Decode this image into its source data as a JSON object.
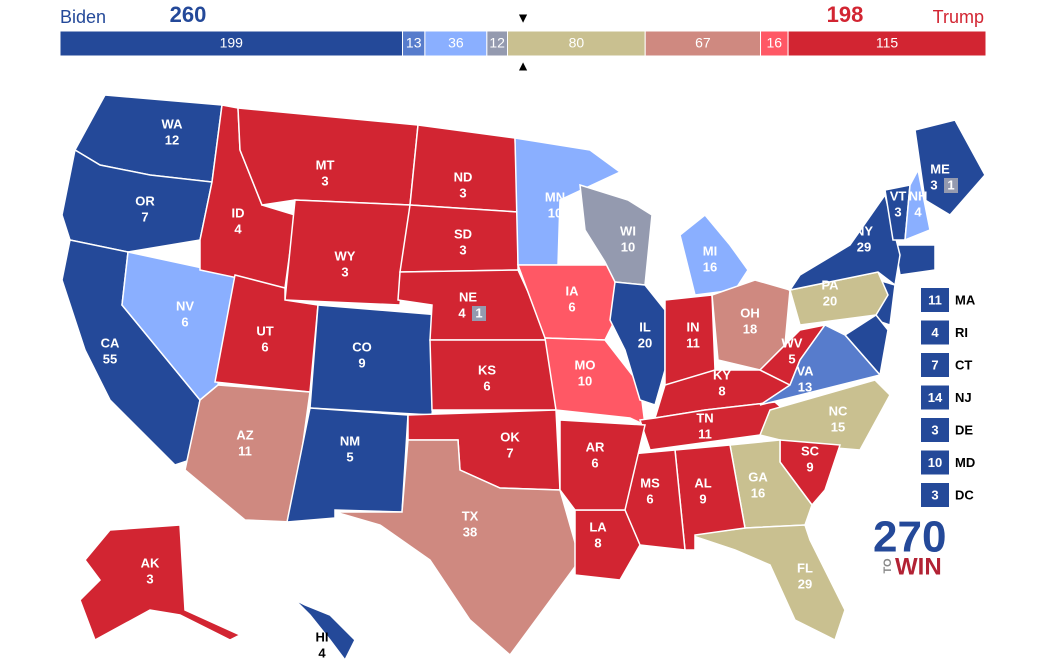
{
  "header": {
    "left_name": "Biden",
    "left_total": 260,
    "right_name": "Trump",
    "right_total": 198,
    "segments": [
      {
        "value": 199,
        "color": "#244999"
      },
      {
        "value": 13,
        "color": "#577ccc"
      },
      {
        "value": 36,
        "color": "#8aafff"
      },
      {
        "value": 12,
        "color": "#949aaf"
      },
      {
        "value": 80,
        "color": "#c9c090"
      },
      {
        "value": 67,
        "color": "#cf8980"
      },
      {
        "value": 16,
        "color": "#ff5865"
      },
      {
        "value": 115,
        "color": "#d22532"
      }
    ]
  },
  "states": [
    {
      "abbr": "WA",
      "ev": 12,
      "color": "#244999"
    },
    {
      "abbr": "OR",
      "ev": 7,
      "color": "#244999"
    },
    {
      "abbr": "CA",
      "ev": 55,
      "color": "#244999"
    },
    {
      "abbr": "NV",
      "ev": 6,
      "color": "#8aafff"
    },
    {
      "abbr": "ID",
      "ev": 4,
      "color": "#d22532"
    },
    {
      "abbr": "MT",
      "ev": 3,
      "color": "#d22532"
    },
    {
      "abbr": "WY",
      "ev": 3,
      "color": "#d22532"
    },
    {
      "abbr": "UT",
      "ev": 6,
      "color": "#d22532"
    },
    {
      "abbr": "CO",
      "ev": 9,
      "color": "#244999"
    },
    {
      "abbr": "AZ",
      "ev": 11,
      "color": "#cf8980"
    },
    {
      "abbr": "NM",
      "ev": 5,
      "color": "#244999"
    },
    {
      "abbr": "ND",
      "ev": 3,
      "color": "#d22532"
    },
    {
      "abbr": "SD",
      "ev": 3,
      "color": "#d22532"
    },
    {
      "abbr": "NE",
      "ev": 4,
      "color": "#d22532",
      "district": 1,
      "district_color": "#949aaf"
    },
    {
      "abbr": "KS",
      "ev": 6,
      "color": "#d22532"
    },
    {
      "abbr": "OK",
      "ev": 7,
      "color": "#d22532"
    },
    {
      "abbr": "TX",
      "ev": 38,
      "color": "#cf8980"
    },
    {
      "abbr": "MN",
      "ev": 10,
      "color": "#8aafff"
    },
    {
      "abbr": "IA",
      "ev": 6,
      "color": "#ff5865"
    },
    {
      "abbr": "MO",
      "ev": 10,
      "color": "#ff5865"
    },
    {
      "abbr": "WI",
      "ev": 10,
      "color": "#949aaf"
    },
    {
      "abbr": "IL",
      "ev": 20,
      "color": "#244999"
    },
    {
      "abbr": "MI",
      "ev": 16,
      "color": "#8aafff"
    },
    {
      "abbr": "IN",
      "ev": 11,
      "color": "#d22532"
    },
    {
      "abbr": "OH",
      "ev": 18,
      "color": "#cf8980"
    },
    {
      "abbr": "KY",
      "ev": 8,
      "color": "#d22532"
    },
    {
      "abbr": "TN",
      "ev": 11,
      "color": "#d22532"
    },
    {
      "abbr": "WV",
      "ev": 5,
      "color": "#d22532"
    },
    {
      "abbr": "VA",
      "ev": 13,
      "color": "#577ccc"
    },
    {
      "abbr": "NC",
      "ev": 15,
      "color": "#c9c090"
    },
    {
      "abbr": "SC",
      "ev": 9,
      "color": "#d22532"
    },
    {
      "abbr": "GA",
      "ev": 16,
      "color": "#c9c090"
    },
    {
      "abbr": "FL",
      "ev": 29,
      "color": "#c9c090"
    },
    {
      "abbr": "AL",
      "ev": 9,
      "color": "#d22532"
    },
    {
      "abbr": "MS",
      "ev": 6,
      "color": "#d22532"
    },
    {
      "abbr": "LA",
      "ev": 8,
      "color": "#d22532"
    },
    {
      "abbr": "AR",
      "ev": 6,
      "color": "#d22532"
    },
    {
      "abbr": "PA",
      "ev": 20,
      "color": "#c9c090"
    },
    {
      "abbr": "NY",
      "ev": 29,
      "color": "#244999"
    },
    {
      "abbr": "VT",
      "ev": 3,
      "color": "#244999"
    },
    {
      "abbr": "NH",
      "ev": 4,
      "color": "#8aafff"
    },
    {
      "abbr": "ME",
      "ev": 3,
      "color": "#244999",
      "district": 1,
      "district_color": "#949aaf"
    },
    {
      "abbr": "AK",
      "ev": 3,
      "color": "#d22532"
    },
    {
      "abbr": "HI",
      "ev": 4,
      "color": "#244999"
    }
  ],
  "small_states": [
    {
      "abbr": "MA",
      "ev": 11,
      "color": "#244999"
    },
    {
      "abbr": "RI",
      "ev": 4,
      "color": "#244999"
    },
    {
      "abbr": "CT",
      "ev": 7,
      "color": "#244999"
    },
    {
      "abbr": "NJ",
      "ev": 14,
      "color": "#244999"
    },
    {
      "abbr": "DE",
      "ev": 3,
      "color": "#244999"
    },
    {
      "abbr": "MD",
      "ev": 10,
      "color": "#244999"
    },
    {
      "abbr": "DC",
      "ev": 3,
      "color": "#244999"
    }
  ],
  "logo": {
    "number": "270",
    "to": "TO",
    "win": "WIN"
  }
}
